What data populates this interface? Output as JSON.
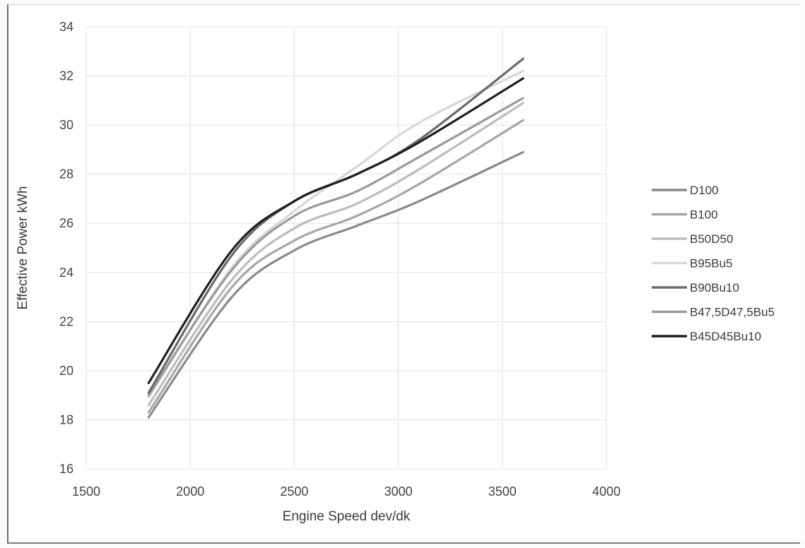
{
  "chart_data": {
    "type": "line",
    "title": "",
    "xlabel": "Engine Speed dev/dk",
    "ylabel": "Effective Power kWh",
    "xlim": [
      1500,
      4000
    ],
    "ylim": [
      16,
      34
    ],
    "xticks": [
      1500,
      2000,
      2500,
      3000,
      3500,
      4000
    ],
    "yticks": [
      16,
      18,
      20,
      22,
      24,
      26,
      28,
      30,
      32,
      34
    ],
    "grid": true,
    "legend_position": "right",
    "x": [
      1800,
      2200,
      2500,
      2800,
      3100,
      3600
    ],
    "series": [
      {
        "name": "D100",
        "color": "#8a8a8a",
        "values": [
          18.1,
          23.0,
          24.9,
          25.9,
          26.9,
          28.9
        ]
      },
      {
        "name": "B100",
        "color": "#a6a6a6",
        "values": [
          18.3,
          23.4,
          25.3,
          26.3,
          27.6,
          30.2
        ]
      },
      {
        "name": "B50D50",
        "color": "#bcbcbc",
        "values": [
          18.6,
          23.7,
          25.8,
          26.8,
          28.2,
          30.9
        ]
      },
      {
        "name": "B95Bu5",
        "color": "#d7d7d7",
        "values": [
          18.9,
          24.2,
          26.5,
          28.3,
          30.1,
          32.2
        ]
      },
      {
        "name": "B90Bu10",
        "color": "#6a6a6a",
        "values": [
          19.1,
          24.7,
          26.9,
          28.0,
          29.4,
          32.7
        ]
      },
      {
        "name": "B47,5D47,5Bu5",
        "color": "#9a9a9a",
        "values": [
          19.0,
          24.1,
          26.3,
          27.3,
          28.7,
          31.1
        ]
      },
      {
        "name": "B45D45Bu10",
        "color": "#1f1f1f",
        "values": [
          19.5,
          24.9,
          26.9,
          28.0,
          29.3,
          31.9
        ]
      }
    ]
  }
}
